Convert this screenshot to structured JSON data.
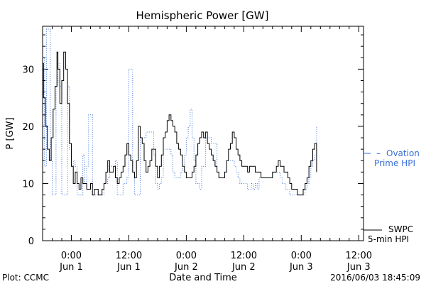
{
  "chart_data": {
    "type": "line",
    "title": "Hemispheric Power [GW]",
    "xlabel": "Date and Time",
    "ylabel": "P [GW]",
    "ylim": [
      0,
      37.5
    ],
    "xlim_hours": [
      -3,
      30.5
    ],
    "yticks": [
      0,
      10,
      20,
      30
    ],
    "xticks": [
      {
        "h": 0,
        "time": "0:00",
        "date": "Jun 1"
      },
      {
        "h": 6,
        "time": "12:00",
        "date": "Jun 1"
      },
      {
        "h": 12,
        "time": "0:00",
        "date": "Jun 2"
      },
      {
        "h": 18,
        "time": "12:00",
        "date": "Jun 2"
      },
      {
        "h": 24,
        "time": "0:00",
        "date": "Jun 3"
      },
      {
        "h": 30,
        "time": "12:00",
        "date": "Jun 3"
      }
    ],
    "series": [
      {
        "name": "SWPC 5-min HPI",
        "color": "#000000",
        "style": "solid",
        "points": [
          [
            -3.0,
            31
          ],
          [
            -2.9,
            25
          ],
          [
            -2.7,
            20
          ],
          [
            -2.5,
            16
          ],
          [
            -2.3,
            14
          ],
          [
            -2.1,
            18
          ],
          [
            -1.9,
            23
          ],
          [
            -1.7,
            27
          ],
          [
            -1.5,
            33
          ],
          [
            -1.4,
            30
          ],
          [
            -1.2,
            24
          ],
          [
            -1.0,
            28
          ],
          [
            -0.8,
            33
          ],
          [
            -0.6,
            30
          ],
          [
            -0.4,
            24
          ],
          [
            -0.2,
            17
          ],
          [
            0.0,
            13
          ],
          [
            0.2,
            10
          ],
          [
            0.4,
            12
          ],
          [
            0.6,
            10
          ],
          [
            0.8,
            9
          ],
          [
            1.0,
            11
          ],
          [
            1.2,
            10
          ],
          [
            1.4,
            10
          ],
          [
            1.6,
            9
          ],
          [
            1.8,
            9
          ],
          [
            2.0,
            10
          ],
          [
            2.2,
            8
          ],
          [
            2.4,
            9
          ],
          [
            2.6,
            9
          ],
          [
            2.8,
            8
          ],
          [
            3.0,
            8
          ],
          [
            3.2,
            9
          ],
          [
            3.4,
            10
          ],
          [
            3.6,
            12
          ],
          [
            3.8,
            14
          ],
          [
            4.0,
            12
          ],
          [
            4.2,
            12
          ],
          [
            4.4,
            13
          ],
          [
            4.6,
            11
          ],
          [
            4.8,
            10
          ],
          [
            5.0,
            11
          ],
          [
            5.2,
            12
          ],
          [
            5.4,
            13
          ],
          [
            5.6,
            15
          ],
          [
            5.8,
            17
          ],
          [
            6.0,
            15
          ],
          [
            6.2,
            14
          ],
          [
            6.4,
            12
          ],
          [
            6.6,
            11
          ],
          [
            6.8,
            14
          ],
          [
            7.0,
            20
          ],
          [
            7.2,
            18
          ],
          [
            7.4,
            17
          ],
          [
            7.6,
            14
          ],
          [
            7.8,
            12
          ],
          [
            8.0,
            13
          ],
          [
            8.2,
            14
          ],
          [
            8.4,
            16
          ],
          [
            8.6,
            16
          ],
          [
            8.8,
            13
          ],
          [
            9.0,
            11
          ],
          [
            9.2,
            13
          ],
          [
            9.4,
            15
          ],
          [
            9.6,
            18
          ],
          [
            9.8,
            19
          ],
          [
            10.0,
            21
          ],
          [
            10.2,
            22
          ],
          [
            10.4,
            21
          ],
          [
            10.6,
            20
          ],
          [
            10.8,
            19
          ],
          [
            11.0,
            17
          ],
          [
            11.2,
            16
          ],
          [
            11.4,
            15
          ],
          [
            11.6,
            13
          ],
          [
            11.8,
            12
          ],
          [
            12.0,
            11
          ],
          [
            12.2,
            11
          ],
          [
            12.4,
            11
          ],
          [
            12.6,
            12
          ],
          [
            12.8,
            13
          ],
          [
            13.0,
            15
          ],
          [
            13.2,
            17
          ],
          [
            13.4,
            18
          ],
          [
            13.6,
            19
          ],
          [
            13.8,
            18
          ],
          [
            14.0,
            19
          ],
          [
            14.2,
            17
          ],
          [
            14.4,
            16
          ],
          [
            14.6,
            15
          ],
          [
            14.8,
            14
          ],
          [
            15.0,
            13
          ],
          [
            15.2,
            12
          ],
          [
            15.4,
            11
          ],
          [
            15.6,
            11
          ],
          [
            15.8,
            11
          ],
          [
            16.0,
            12
          ],
          [
            16.2,
            14
          ],
          [
            16.4,
            16
          ],
          [
            16.6,
            17
          ],
          [
            16.8,
            19
          ],
          [
            17.0,
            18
          ],
          [
            17.2,
            16
          ],
          [
            17.4,
            15
          ],
          [
            17.6,
            14
          ],
          [
            17.8,
            13
          ],
          [
            18.0,
            13
          ],
          [
            18.2,
            13
          ],
          [
            18.4,
            12
          ],
          [
            18.6,
            13
          ],
          [
            18.8,
            13
          ],
          [
            19.0,
            13
          ],
          [
            19.2,
            12
          ],
          [
            19.4,
            12
          ],
          [
            19.6,
            12
          ],
          [
            19.8,
            11
          ],
          [
            20.0,
            11
          ],
          [
            20.2,
            11
          ],
          [
            20.4,
            11
          ],
          [
            20.6,
            11
          ],
          [
            20.8,
            11
          ],
          [
            21.0,
            12
          ],
          [
            21.2,
            12
          ],
          [
            21.4,
            13
          ],
          [
            21.6,
            14
          ],
          [
            21.8,
            13
          ],
          [
            22.0,
            13
          ],
          [
            22.2,
            12
          ],
          [
            22.4,
            12
          ],
          [
            22.6,
            11
          ],
          [
            22.8,
            10
          ],
          [
            23.0,
            9
          ],
          [
            23.2,
            9
          ],
          [
            23.4,
            9
          ],
          [
            23.6,
            8
          ],
          [
            23.8,
            8
          ],
          [
            24.0,
            8
          ],
          [
            24.2,
            9
          ],
          [
            24.4,
            10
          ],
          [
            24.6,
            11
          ],
          [
            24.8,
            13
          ],
          [
            25.0,
            14
          ],
          [
            25.2,
            16
          ],
          [
            25.4,
            17
          ],
          [
            25.6,
            12
          ]
        ]
      },
      {
        "name": "Ovation Prime HPI",
        "color": "#3a6fd8",
        "style": "dotted",
        "points": [
          [
            -3.0,
            32
          ],
          [
            -2.8,
            13
          ],
          [
            -2.6,
            37
          ],
          [
            -2.4,
            37
          ],
          [
            -2.2,
            14
          ],
          [
            -2.0,
            8
          ],
          [
            -1.8,
            8
          ],
          [
            -1.6,
            27
          ],
          [
            -1.4,
            31
          ],
          [
            -1.2,
            27
          ],
          [
            -1.0,
            8
          ],
          [
            -0.8,
            8
          ],
          [
            -0.6,
            8
          ],
          [
            -0.4,
            27
          ],
          [
            -0.2,
            16
          ],
          [
            0.0,
            13
          ],
          [
            0.2,
            14
          ],
          [
            0.4,
            13
          ],
          [
            0.6,
            8
          ],
          [
            0.8,
            8
          ],
          [
            1.0,
            8
          ],
          [
            1.2,
            15
          ],
          [
            1.4,
            10
          ],
          [
            1.6,
            13
          ],
          [
            1.8,
            22
          ],
          [
            2.0,
            22
          ],
          [
            2.2,
            8
          ],
          [
            2.4,
            8
          ],
          [
            2.6,
            8
          ],
          [
            2.8,
            8
          ],
          [
            3.0,
            8
          ],
          [
            3.2,
            8
          ],
          [
            3.4,
            10
          ],
          [
            3.6,
            10
          ],
          [
            3.8,
            11
          ],
          [
            4.0,
            13
          ],
          [
            4.2,
            13
          ],
          [
            4.4,
            13
          ],
          [
            4.6,
            14
          ],
          [
            4.8,
            8
          ],
          [
            5.0,
            8
          ],
          [
            5.2,
            8
          ],
          [
            5.4,
            10
          ],
          [
            5.6,
            10
          ],
          [
            5.8,
            11
          ],
          [
            6.0,
            30
          ],
          [
            6.2,
            30
          ],
          [
            6.4,
            12
          ],
          [
            6.6,
            8
          ],
          [
            6.8,
            8
          ],
          [
            7.0,
            8
          ],
          [
            7.2,
            18
          ],
          [
            7.4,
            18
          ],
          [
            7.6,
            18
          ],
          [
            7.8,
            19
          ],
          [
            8.0,
            19
          ],
          [
            8.2,
            19
          ],
          [
            8.4,
            19
          ],
          [
            8.6,
            15
          ],
          [
            8.8,
            10
          ],
          [
            9.0,
            9
          ],
          [
            9.2,
            10
          ],
          [
            9.4,
            11
          ],
          [
            9.6,
            16
          ],
          [
            9.8,
            16
          ],
          [
            10.0,
            16
          ],
          [
            10.2,
            16
          ],
          [
            10.4,
            15
          ],
          [
            10.6,
            12
          ],
          [
            10.8,
            11
          ],
          [
            11.0,
            11
          ],
          [
            11.2,
            11
          ],
          [
            11.4,
            12
          ],
          [
            11.6,
            13
          ],
          [
            11.8,
            15
          ],
          [
            12.0,
            18
          ],
          [
            12.2,
            20
          ],
          [
            12.4,
            23
          ],
          [
            12.6,
            18
          ],
          [
            12.8,
            14
          ],
          [
            13.0,
            10
          ],
          [
            13.2,
            10
          ],
          [
            13.4,
            9
          ],
          [
            13.6,
            13
          ],
          [
            13.8,
            13
          ],
          [
            14.0,
            18
          ],
          [
            14.2,
            18
          ],
          [
            14.4,
            18
          ],
          [
            14.6,
            17
          ],
          [
            14.8,
            17
          ],
          [
            15.0,
            17
          ],
          [
            15.2,
            12
          ],
          [
            15.4,
            11
          ],
          [
            15.6,
            11
          ],
          [
            15.8,
            11
          ],
          [
            16.0,
            12
          ],
          [
            16.2,
            14
          ],
          [
            16.4,
            14
          ],
          [
            16.6,
            14
          ],
          [
            16.8,
            14
          ],
          [
            17.0,
            13
          ],
          [
            17.2,
            12
          ],
          [
            17.4,
            11
          ],
          [
            17.6,
            10
          ],
          [
            17.8,
            10
          ],
          [
            18.0,
            10
          ],
          [
            18.2,
            10
          ],
          [
            18.4,
            9
          ],
          [
            18.6,
            9
          ],
          [
            18.8,
            10
          ],
          [
            19.0,
            9
          ],
          [
            19.2,
            10
          ],
          [
            19.4,
            9
          ],
          [
            19.6,
            11
          ],
          [
            19.8,
            11
          ],
          [
            20.0,
            11
          ],
          [
            20.2,
            11
          ],
          [
            20.4,
            11
          ],
          [
            20.6,
            11
          ],
          [
            20.8,
            11
          ],
          [
            21.0,
            12
          ],
          [
            21.2,
            12
          ],
          [
            21.4,
            12
          ],
          [
            21.6,
            12
          ],
          [
            21.8,
            11
          ],
          [
            22.0,
            10
          ],
          [
            22.2,
            10
          ],
          [
            22.4,
            9
          ],
          [
            22.6,
            9
          ],
          [
            22.8,
            8
          ],
          [
            23.0,
            8
          ],
          [
            23.2,
            8
          ],
          [
            23.4,
            8
          ],
          [
            23.6,
            8
          ],
          [
            23.8,
            8
          ],
          [
            24.0,
            8
          ],
          [
            24.2,
            8
          ],
          [
            24.4,
            9
          ],
          [
            24.6,
            10
          ],
          [
            24.8,
            11
          ],
          [
            25.0,
            13
          ],
          [
            25.2,
            14
          ],
          [
            25.4,
            15
          ],
          [
            25.6,
            20
          ]
        ]
      }
    ],
    "legend": {
      "ovation_line1": "Ovation",
      "ovation_line2": "Prime HPI",
      "swpc_line1": "SWPC",
      "swpc_line2": "5-min HPI",
      "dash": "–"
    }
  },
  "footer": {
    "left": "Plot: CCMC",
    "right": "2016/06/03 18:45:09"
  }
}
